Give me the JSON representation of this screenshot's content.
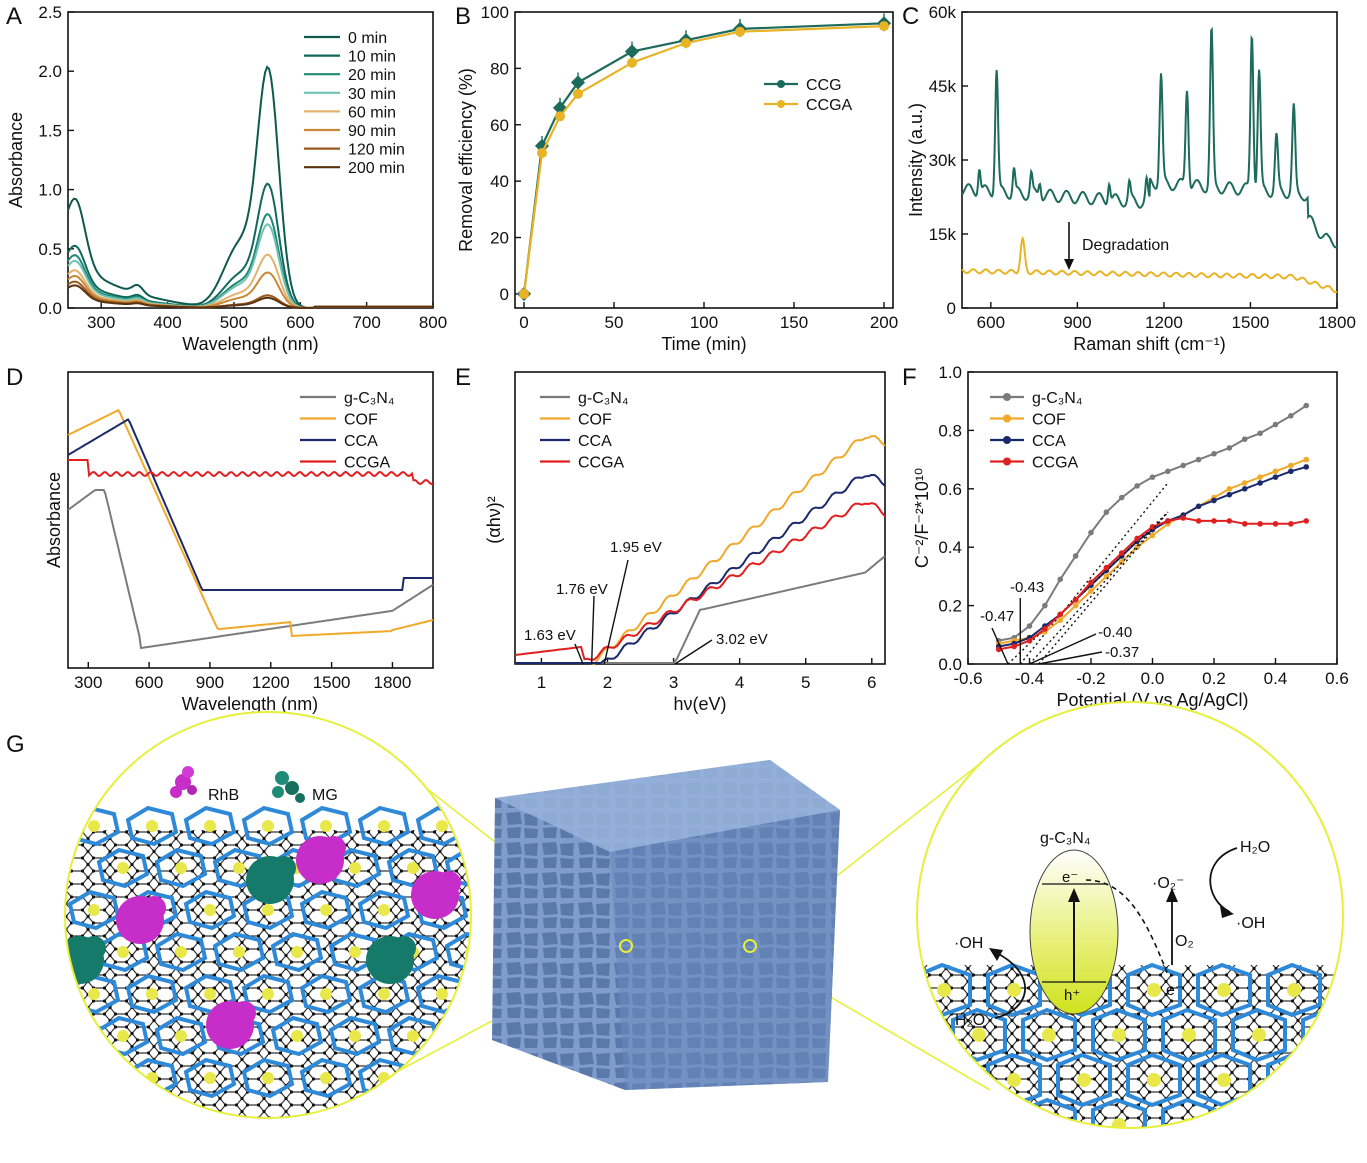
{
  "panel_letters": [
    "A",
    "B",
    "C",
    "D",
    "E",
    "F",
    "G"
  ],
  "colors": {
    "teal_dark": "#0e5a4e",
    "teal": "#1f8a78",
    "teal_light": "#6fc2b3",
    "orange_light": "#e3b36d",
    "orange": "#c98838",
    "brown": "#9a5a1f",
    "brown_dark": "#5c3210",
    "ccg": "#1d6b5a",
    "ccga": "#e8b325",
    "gcn": "#7b7b7b",
    "cof": "#f0a92a",
    "cca": "#1b2a6b",
    "ccga_red": "#e02020",
    "neon": "#e6ef3a",
    "cube_blue": "#6f8fc0",
    "bond_blue": "#2e8ad8",
    "sulfur": "#e8e84a"
  },
  "chart_data": [
    {
      "panel": "A",
      "type": "line",
      "xlabel": "Wavelength (nm)",
      "ylabel": "Absorbance",
      "xlim": [
        250,
        800
      ],
      "ylim": [
        0,
        2.5
      ],
      "xticks": [
        "300",
        "400",
        "500",
        "600",
        "700",
        "800"
      ],
      "yticks": [
        "0.0",
        "0.5",
        "1.0",
        "1.5",
        "2.0",
        "2.5"
      ],
      "legend_position": "top-right",
      "series": [
        {
          "name": "0 min",
          "peak": 1.9,
          "base": 0.58
        },
        {
          "name": "10 min",
          "peak": 0.98,
          "base": 0.33
        },
        {
          "name": "20 min",
          "peak": 0.74,
          "base": 0.28
        },
        {
          "name": "30 min",
          "peak": 0.66,
          "base": 0.25
        },
        {
          "name": "60 min",
          "peak": 0.42,
          "base": 0.2
        },
        {
          "name": "90 min",
          "peak": 0.28,
          "base": 0.17
        },
        {
          "name": "120 min",
          "peak": 0.1,
          "base": 0.14
        },
        {
          "name": "200 min",
          "peak": 0.08,
          "base": 0.12
        }
      ]
    },
    {
      "panel": "B",
      "type": "line",
      "xlabel": "Time (min)",
      "ylabel": "Removal efficiency (%)",
      "xlim": [
        -5,
        205
      ],
      "ylim": [
        -5,
        100
      ],
      "xticks": [
        "0",
        "50",
        "100",
        "150",
        "200"
      ],
      "yticks": [
        "0",
        "20",
        "40",
        "60",
        "80",
        "100"
      ],
      "x": [
        0,
        10,
        20,
        30,
        60,
        90,
        120,
        200
      ],
      "legend_position": "top-right",
      "series": [
        {
          "name": "CCG",
          "values": [
            0,
            52.5,
            66,
            75,
            86,
            90,
            94,
            96
          ]
        },
        {
          "name": "CCGA",
          "values": [
            0,
            50,
            63,
            71,
            82,
            89,
            93,
            95
          ]
        }
      ]
    },
    {
      "panel": "C",
      "type": "line",
      "xlabel": "Raman shift (cm⁻¹)",
      "ylabel": "Intensity (a.u.)",
      "xlim": [
        500,
        1800
      ],
      "ylim": [
        0,
        60000
      ],
      "xticks": [
        "600",
        "900",
        "1200",
        "1500",
        "1800"
      ],
      "yticks": [
        "0",
        "15k",
        "30k",
        "45k",
        "60k"
      ],
      "annotation": "Degradation",
      "series": [
        {
          "name": "top",
          "peaks": [
            [
              620,
              45000
            ],
            [
              1190,
              42000
            ],
            [
              1280,
              40000
            ],
            [
              1365,
              51500
            ],
            [
              1505,
              52000
            ],
            [
              1530,
              44000
            ],
            [
              1590,
              31000
            ],
            [
              1650,
              37000
            ]
          ]
        },
        {
          "name": "bottom",
          "peaks": [
            [
              710,
              13000
            ],
            [
              1610,
              6500
            ]
          ]
        }
      ]
    },
    {
      "panel": "D",
      "type": "line",
      "xlabel": "Wavelength (nm)",
      "ylabel": "Absorbance",
      "xlim": [
        200,
        2000
      ],
      "xticks": [
        "300",
        "600",
        "900",
        "1200",
        "1500",
        "1800"
      ],
      "legend_position": "top-right",
      "series": [
        {
          "name": "g-C₃N₄"
        },
        {
          "name": "COF"
        },
        {
          "name": "CCA"
        },
        {
          "name": "CCGA"
        }
      ]
    },
    {
      "panel": "E",
      "type": "line",
      "xlabel": "hν(eV)",
      "ylabel": "(αhν)²",
      "xlim": [
        0.6,
        6.2
      ],
      "xticks": [
        "1",
        "2",
        "3",
        "4",
        "5",
        "6"
      ],
      "legend_position": "top-left",
      "series": [
        {
          "name": "g-C₃N₄",
          "bandgap": 3.02
        },
        {
          "name": "COF",
          "bandgap": 1.76
        },
        {
          "name": "CCA",
          "bandgap": 1.95
        },
        {
          "name": "CCGA",
          "bandgap": 1.63
        }
      ],
      "annotations": [
        "1.95 eV",
        "1.76 eV",
        "1.63 eV",
        "3.02 eV"
      ]
    },
    {
      "panel": "F",
      "type": "line",
      "xlabel": "Potential (V vs Ag/AgCl)",
      "ylabel": "C⁻²/F⁻²*10¹⁰",
      "xlim": [
        -0.6,
        0.6
      ],
      "ylim": [
        0,
        1.0
      ],
      "xticks": [
        "-0.6",
        "-0.4",
        "-0.2",
        "0.0",
        "0.2",
        "0.4",
        "0.6"
      ],
      "yticks": [
        "0.0",
        "0.2",
        "0.4",
        "0.6",
        "0.8",
        "1.0"
      ],
      "legend_position": "top-left",
      "x": [
        -0.5,
        -0.45,
        -0.4,
        -0.35,
        -0.3,
        -0.25,
        -0.2,
        -0.15,
        -0.1,
        -0.05,
        0,
        0.05,
        0.1,
        0.15,
        0.2,
        0.25,
        0.3,
        0.35,
        0.4,
        0.45,
        0.5
      ],
      "series": [
        {
          "name": "g-C₃N₄",
          "values": [
            0.08,
            0.09,
            0.13,
            0.2,
            0.29,
            0.37,
            0.45,
            0.52,
            0.57,
            0.61,
            0.64,
            0.66,
            0.68,
            0.7,
            0.72,
            0.74,
            0.77,
            0.79,
            0.82,
            0.85,
            0.885
          ],
          "flatband": -0.43
        },
        {
          "name": "COF",
          "values": [
            0.07,
            0.08,
            0.09,
            0.11,
            0.15,
            0.2,
            0.25,
            0.3,
            0.35,
            0.4,
            0.44,
            0.48,
            0.51,
            0.54,
            0.57,
            0.6,
            0.62,
            0.64,
            0.66,
            0.68,
            0.7
          ],
          "flatband": -0.37
        },
        {
          "name": "CCA",
          "values": [
            0.06,
            0.07,
            0.09,
            0.13,
            0.17,
            0.22,
            0.27,
            0.32,
            0.37,
            0.42,
            0.46,
            0.49,
            0.51,
            0.54,
            0.56,
            0.58,
            0.6,
            0.62,
            0.64,
            0.66,
            0.675
          ],
          "flatband": -0.47
        },
        {
          "name": "CCGA",
          "values": [
            0.05,
            0.06,
            0.08,
            0.12,
            0.17,
            0.22,
            0.28,
            0.33,
            0.38,
            0.43,
            0.47,
            0.49,
            0.5,
            0.49,
            0.49,
            0.49,
            0.48,
            0.48,
            0.48,
            0.48,
            0.49
          ],
          "flatband": -0.4
        }
      ],
      "annotations": [
        "-0.43",
        "-0.47",
        "-0.40",
        "-0.37"
      ]
    }
  ],
  "panel_g": {
    "left_labels": [
      "RhB",
      "MG"
    ],
    "right_labels": {
      "material": "g-C₃N₄",
      "h2o_top": "H₂O",
      "oh_right": "·OH",
      "o2_radical": "·O₂⁻",
      "oh_left": "·OH",
      "o2": "O₂",
      "e_top": "e⁻",
      "h_bottom": "h⁺",
      "e_side": "e⁻",
      "h2o_left": "H₂O"
    }
  }
}
